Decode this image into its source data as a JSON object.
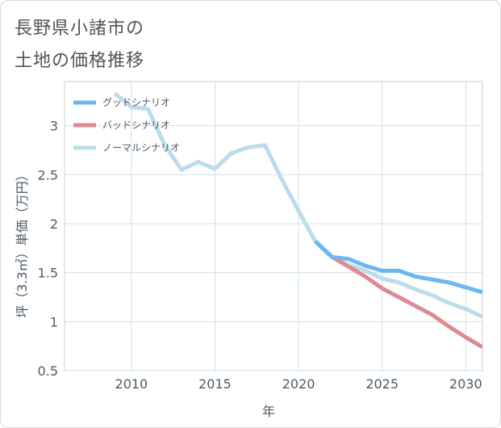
{
  "title_lines": [
    "長野県小諸市の",
    "土地の価格推移"
  ],
  "chart_data": {
    "type": "line",
    "title": "長野県小諸市の土地の価格推移",
    "xlabel": "年",
    "ylabel": "坪（3.3㎡）単価（万円）",
    "xlim": [
      2006,
      2031
    ],
    "ylim": [
      0.5,
      3.45
    ],
    "xticks": [
      2010,
      2015,
      2020,
      2025,
      2030
    ],
    "yticks": [
      0.5,
      1,
      1.5,
      2,
      2.5,
      3
    ],
    "grid": true,
    "legend_position": "top-left",
    "series": [
      {
        "name": "グッドシナリオ",
        "color": "#6cb8ee",
        "x": [
          2021,
          2022,
          2023,
          2024,
          2025,
          2026,
          2027,
          2028,
          2029,
          2030,
          2031
        ],
        "values": [
          1.82,
          1.66,
          1.64,
          1.57,
          1.52,
          1.52,
          1.46,
          1.43,
          1.4,
          1.35,
          1.3
        ]
      },
      {
        "name": "バッドシナリオ",
        "color": "#de8a92",
        "x": [
          2021,
          2022,
          2023,
          2024,
          2025,
          2026,
          2027,
          2028,
          2029,
          2030,
          2031
        ],
        "values": [
          1.82,
          1.66,
          1.56,
          1.46,
          1.34,
          1.25,
          1.16,
          1.07,
          0.95,
          0.84,
          0.74
        ]
      },
      {
        "name": "ノーマルシナリオ",
        "color": "#bcdceb",
        "x": [
          2009,
          2010,
          2011,
          2012,
          2013,
          2014,
          2015,
          2016,
          2017,
          2018,
          2019,
          2020,
          2021,
          2022,
          2023,
          2024,
          2025,
          2026,
          2027,
          2028,
          2029,
          2030,
          2031
        ],
        "values": [
          3.33,
          3.19,
          3.17,
          2.8,
          2.55,
          2.63,
          2.56,
          2.72,
          2.78,
          2.8,
          2.45,
          2.13,
          1.82,
          1.66,
          1.58,
          1.52,
          1.44,
          1.4,
          1.33,
          1.27,
          1.19,
          1.13,
          1.05
        ]
      }
    ]
  }
}
